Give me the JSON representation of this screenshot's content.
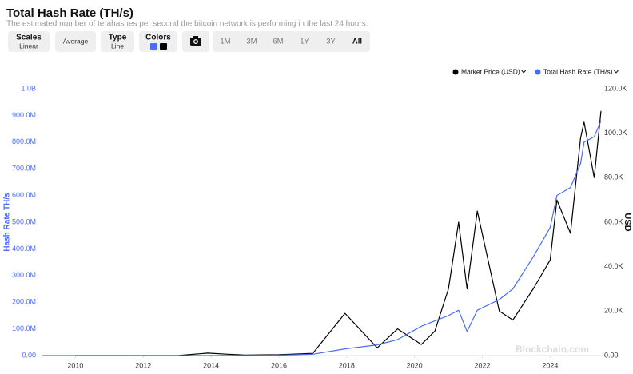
{
  "header": {
    "title": "Total Hash Rate (TH/s)",
    "subtitle": "The estimated number of terahashes per second the bitcoin network is performing in the last 24 hours."
  },
  "toolbar": {
    "scales": {
      "label": "Scales",
      "value": "Linear"
    },
    "average": "Average",
    "type": {
      "label": "Type",
      "value": "Line"
    },
    "colors": "Colors",
    "ranges": [
      "1M",
      "3M",
      "6M",
      "1Y",
      "3Y",
      "All"
    ]
  },
  "watermark": "Blockchain.com",
  "chart_data": {
    "type": "line",
    "ylabel": "Hash Rate TH/s",
    "y2label": "USD",
    "x": [
      2009.0,
      2010,
      2011,
      2012,
      2013,
      2013.9,
      2014.5,
      2015,
      2016,
      2017,
      2017.95,
      2018.9,
      2019.5,
      2020.2,
      2020.6,
      2021.0,
      2021.3,
      2021.55,
      2021.85,
      2022.5,
      2022.9,
      2023.5,
      2024.0,
      2024.2,
      2024.6,
      2024.9,
      2025.0,
      2025.3,
      2025.5
    ],
    "series": [
      {
        "name": "Market Price (USD)",
        "color": "#000000",
        "axis": "y2",
        "values": [
          null,
          0.1,
          3,
          5,
          13,
          1100,
          600,
          250,
          430,
          1000,
          19000,
          3500,
          12000,
          5000,
          11000,
          30000,
          60000,
          30000,
          65000,
          20000,
          16000,
          30000,
          43000,
          70000,
          55000,
          98000,
          105000,
          80000,
          110000
        ]
      },
      {
        "name": "Total Hash Rate (TH/s)",
        "color": "#4a6cf7",
        "values": [
          0,
          0,
          0,
          0,
          0,
          10000,
          200000,
          400000,
          1500000,
          5000000,
          25000000,
          40000000,
          60000000,
          110000000,
          130000000,
          150000000,
          170000000,
          90000000,
          170000000,
          210000000,
          250000000,
          370000000,
          480000000,
          600000000,
          630000000,
          720000000,
          800000000,
          820000000,
          880000000
        ]
      }
    ],
    "xlim": [
      2009,
      2025.5
    ],
    "xticks": [
      2010,
      2012,
      2014,
      2016,
      2018,
      2020,
      2022,
      2024
    ],
    "ylim": [
      0,
      1000000000
    ],
    "yticks": [
      {
        "value": 0,
        "label": "0.00"
      },
      {
        "value": 100000000,
        "label": "100.0M"
      },
      {
        "value": 200000000,
        "label": "200.0M"
      },
      {
        "value": 300000000,
        "label": "300.0M"
      },
      {
        "value": 400000000,
        "label": "400.0M"
      },
      {
        "value": 500000000,
        "label": "500.0M"
      },
      {
        "value": 600000000,
        "label": "600.0M"
      },
      {
        "value": 700000000,
        "label": "700.0M"
      },
      {
        "value": 800000000,
        "label": "800.0M"
      },
      {
        "value": 900000000,
        "label": "900.0M"
      },
      {
        "value": 1000000000,
        "label": "1.0B"
      }
    ],
    "y2lim": [
      0,
      120000
    ],
    "y2ticks": [
      {
        "value": 0,
        "label": "0.00"
      },
      {
        "value": 20000,
        "label": "20.0K"
      },
      {
        "value": 40000,
        "label": "40.0K"
      },
      {
        "value": 60000,
        "label": "60.0K"
      },
      {
        "value": 80000,
        "label": "80.0K"
      },
      {
        "value": 100000,
        "label": "100.0K"
      },
      {
        "value": 120000,
        "label": "120.0K"
      }
    ],
    "grid": false,
    "legend": "top-right"
  }
}
